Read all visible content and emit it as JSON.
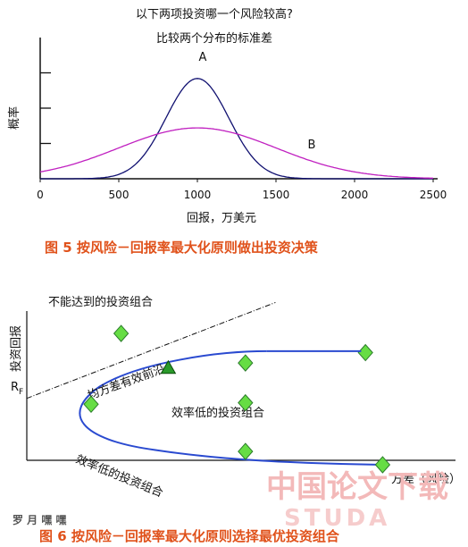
{
  "chart_data": [
    {
      "type": "line",
      "title": "以下两项投资哪一个风险较高?",
      "subtitle": "比较两个分布的标准差",
      "xlabel": "回报，万美元",
      "ylabel": "概率",
      "xlim": [
        0,
        2500
      ],
      "x_ticks": [
        "0",
        "500",
        "1000",
        "1500",
        "2000",
        "2500"
      ],
      "series": [
        {
          "name": "A",
          "mean": 1000,
          "sd": 200,
          "peak": 0.71
        },
        {
          "name": "B",
          "mean": 1000,
          "sd": 500,
          "peak": 0.36
        }
      ],
      "caption": "图 5   按风险－回报率最大化原则做出投资决策",
      "color_A": "#101070",
      "color_B": "#c020c0"
    },
    {
      "type": "scatter",
      "xlabel": "方差（风险）",
      "ylabel": "投资回报",
      "rf_label": "R",
      "rf_sub": "F",
      "frontier_label": "均方差有效前沿",
      "lower_label": "效率低的投资组合",
      "points": [
        {
          "x": 0.22,
          "y": 0.86,
          "kind": "unreachable"
        },
        {
          "x": 0.51,
          "y": 0.66,
          "kind": "frontier"
        },
        {
          "x": 0.79,
          "y": 0.73,
          "kind": "frontier"
        },
        {
          "x": 0.15,
          "y": 0.38,
          "kind": "inefficient"
        },
        {
          "x": 0.51,
          "y": 0.39,
          "kind": "inefficient"
        },
        {
          "x": 0.51,
          "y": 0.06,
          "kind": "inefficient"
        },
        {
          "x": 0.83,
          "y": -0.03,
          "kind": "inefficient"
        },
        {
          "x": 0.33,
          "y": 0.62,
          "kind": "tangency"
        }
      ],
      "annotations": {
        "unreachable": "不能达到的投资组合",
        "inefficient": "效率低的投资组合"
      },
      "caption": "图 6   按风险－回报率最大化原则选择最优投资组合",
      "colors": {
        "point": "#66dd44",
        "tangency": "#2a9a2a",
        "frontier": "#2a4ad0"
      }
    }
  ],
  "watermark": {
    "cn": "中国论文下载",
    "en": "STUDA",
    "logo": "罗 月 嘿 嘿"
  }
}
